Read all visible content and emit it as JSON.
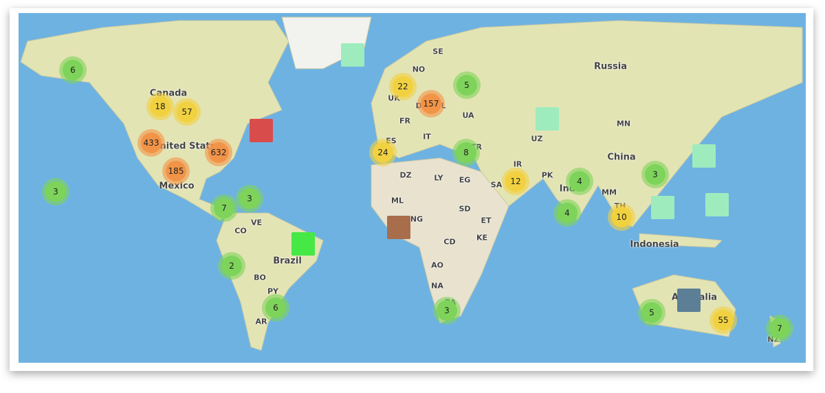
{
  "map": {
    "country_labels": [
      "Canada",
      "United States",
      "Mexico",
      "Brazil",
      "VE",
      "CO",
      "BO",
      "PY",
      "AR",
      "Russia",
      "China",
      "India",
      "Indonesia",
      "MN",
      "UZ",
      "PK",
      "IR",
      "SA",
      "EG",
      "LY",
      "DZ",
      "ML",
      "NG",
      "SD",
      "ET",
      "KE",
      "CD",
      "AO",
      "NA",
      "ZA",
      "SE",
      "NO",
      "UK",
      "FR",
      "ES",
      "IT",
      "UA",
      "TR",
      "MM",
      "TH",
      "Australia",
      "NZ",
      "DE",
      "PL"
    ],
    "cluster_colors": {
      "small": "#7ed35a",
      "medium": "#f1d140",
      "large": "#f29448"
    },
    "clusters": [
      {
        "count": "6",
        "level": "small"
      },
      {
        "count": "18",
        "level": "medium"
      },
      {
        "count": "57",
        "level": "medium"
      },
      {
        "count": "433",
        "level": "large"
      },
      {
        "count": "632",
        "level": "large"
      },
      {
        "count": "185",
        "level": "large"
      },
      {
        "count": "3",
        "level": "small"
      },
      {
        "count": "7",
        "level": "small"
      },
      {
        "count": "3",
        "level": "small"
      },
      {
        "count": "2",
        "level": "small"
      },
      {
        "count": "6",
        "level": "small"
      },
      {
        "count": "22",
        "level": "medium"
      },
      {
        "count": "157",
        "level": "large"
      },
      {
        "count": "5",
        "level": "small"
      },
      {
        "count": "24",
        "level": "medium"
      },
      {
        "count": "8",
        "level": "small"
      },
      {
        "count": "12",
        "level": "medium"
      },
      {
        "count": "4",
        "level": "small"
      },
      {
        "count": "4",
        "level": "small"
      },
      {
        "count": "3",
        "level": "small"
      },
      {
        "count": "10",
        "level": "medium"
      },
      {
        "count": "3",
        "level": "small"
      },
      {
        "count": "5",
        "level": "small"
      },
      {
        "count": "55",
        "level": "medium"
      },
      {
        "count": "7",
        "level": "small"
      }
    ],
    "square_markers": [
      {
        "color": "#9eecbd"
      },
      {
        "color": "#d94c4c"
      },
      {
        "color": "#9eecbd"
      },
      {
        "color": "#9eecbd"
      },
      {
        "color": "#9eecbd"
      },
      {
        "color": "#9eecbd"
      },
      {
        "color": "#45e845"
      },
      {
        "color": "#a86e4b"
      },
      {
        "color": "#5c7f96"
      }
    ]
  }
}
